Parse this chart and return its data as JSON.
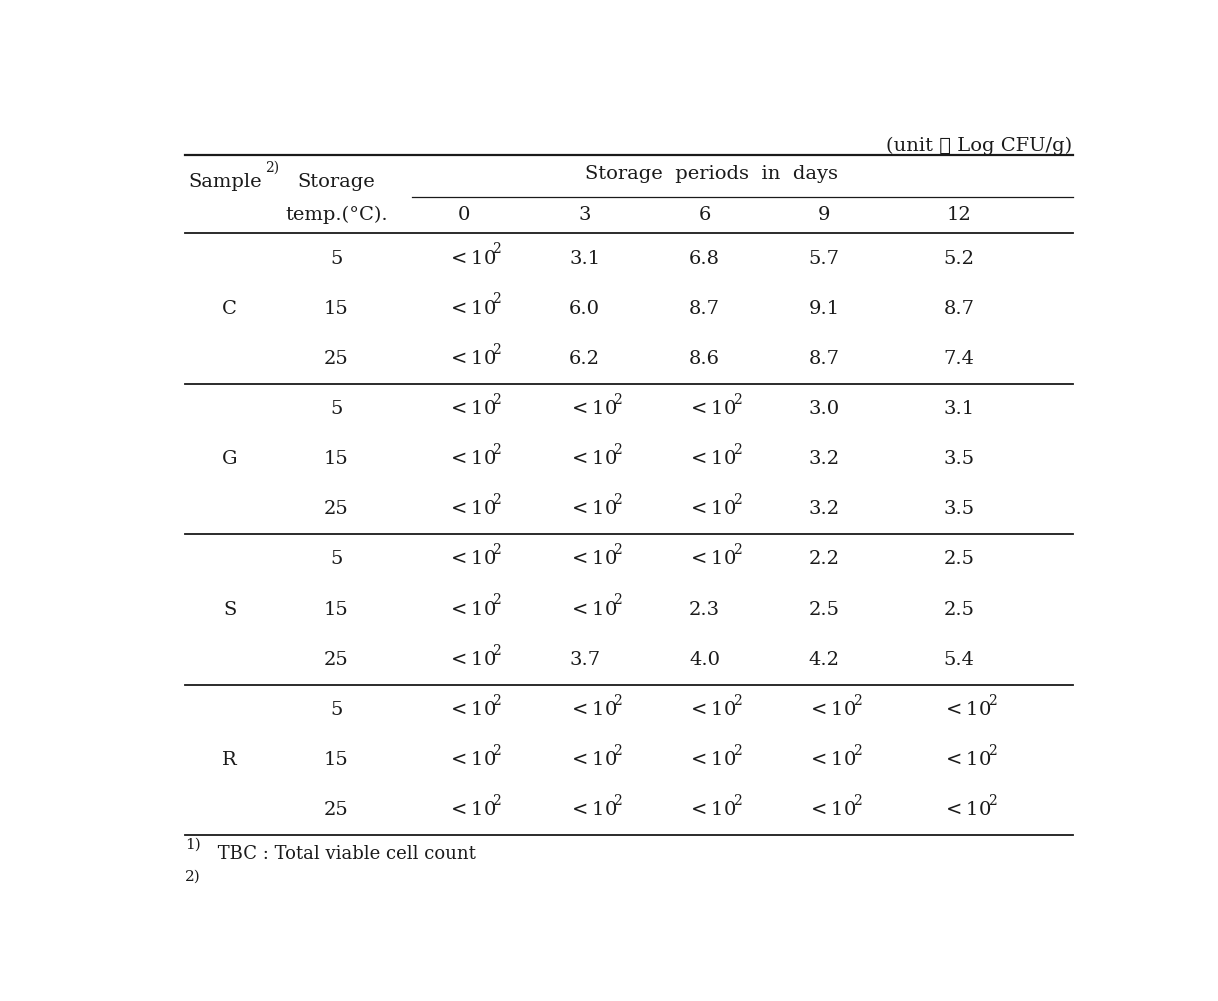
{
  "unit_label": "(unit ： Log CFU/g)",
  "col_header_span": "Storage  periods  in  days",
  "col_days": [
    "0",
    "3",
    "6",
    "9",
    "12"
  ],
  "sample_label": "Sample",
  "sample_sup": "2)",
  "temp_label_line1": "Storage",
  "temp_label_line2": "temp.(°C).",
  "groups": [
    {
      "sample": "C",
      "rows": [
        {
          "temp": "5",
          "values": [
            "<10²",
            "3.1",
            "6.8",
            "5.7",
            "5.2"
          ]
        },
        {
          "temp": "15",
          "values": [
            "<10²",
            "6.0",
            "8.7",
            "9.1",
            "8.7"
          ]
        },
        {
          "temp": "25",
          "values": [
            "<10²",
            "6.2",
            "8.6",
            "8.7",
            "7.4"
          ]
        }
      ]
    },
    {
      "sample": "G",
      "rows": [
        {
          "temp": "5",
          "values": [
            "<10²",
            "<10²",
            "<10²",
            "3.0",
            "3.1"
          ]
        },
        {
          "temp": "15",
          "values": [
            "<10²",
            "<10²",
            "<10²",
            "3.2",
            "3.5"
          ]
        },
        {
          "temp": "25",
          "values": [
            "<10²",
            "<10²",
            "<10²",
            "3.2",
            "3.5"
          ]
        }
      ]
    },
    {
      "sample": "S",
      "rows": [
        {
          "temp": "5",
          "values": [
            "<10²",
            "<10²",
            "<10²",
            "2.2",
            "2.5"
          ]
        },
        {
          "temp": "15",
          "values": [
            "<10²",
            "<10²",
            "2.3",
            "2.5",
            "2.5"
          ]
        },
        {
          "temp": "25",
          "values": [
            "<10²",
            "3.7",
            "4.0",
            "4.2",
            "5.4"
          ]
        }
      ]
    },
    {
      "sample": "R",
      "rows": [
        {
          "temp": "5",
          "values": [
            "<10²",
            "<10²",
            "<10²",
            "<10²",
            "<10²"
          ]
        },
        {
          "temp": "15",
          "values": [
            "<10²",
            "<10²",
            "<10²",
            "<10²",
            "<10²"
          ]
        },
        {
          "temp": "25",
          "values": [
            "<10²",
            "<10²",
            "<10²",
            "<10²",
            "<10²"
          ]
        }
      ]
    }
  ],
  "footnote1_super": "1)",
  "footnote1_text": " TBC : Total viable cell count",
  "footnote2": "2)",
  "bg_color": "#ffffff",
  "text_color": "#1a1a1a",
  "line_color": "#1a1a1a",
  "font_size": 14,
  "sup_font_size": 10
}
